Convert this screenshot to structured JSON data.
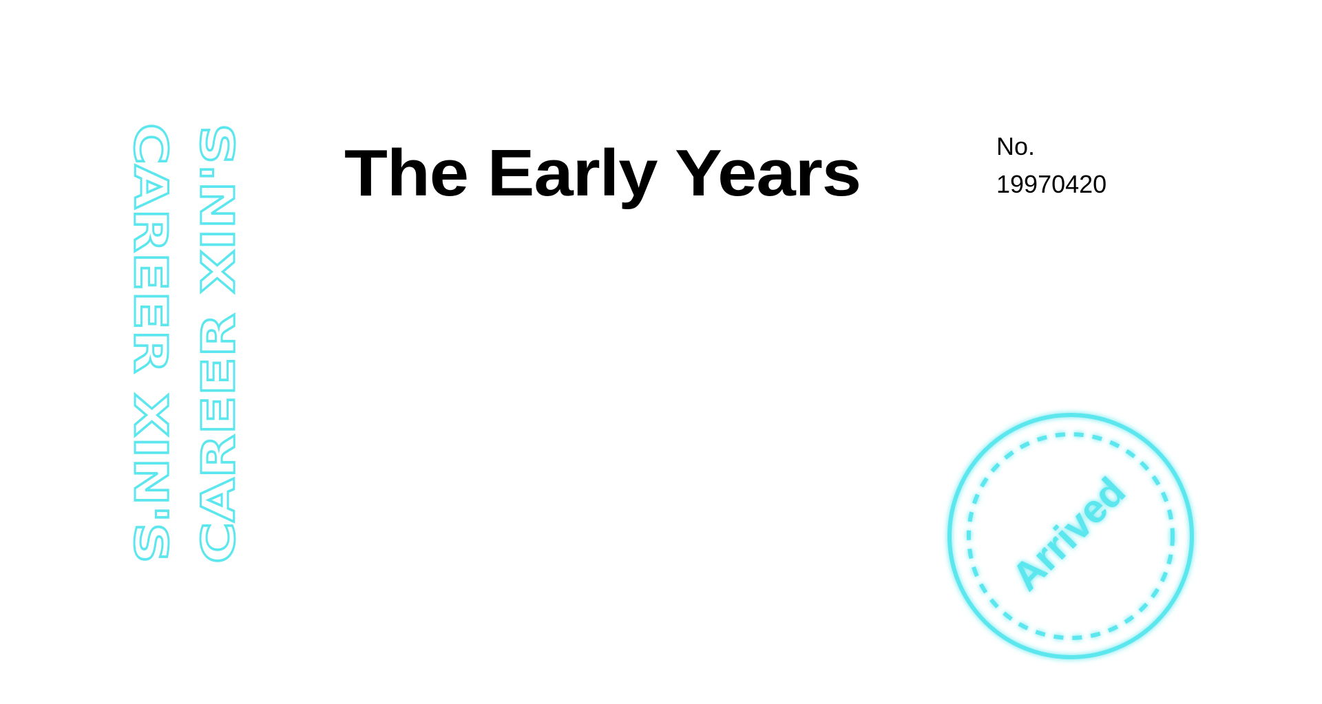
{
  "side_text": [
    "CAREER XIN'S",
    "CAREER XIN'S"
  ],
  "title": "The Early Years",
  "number_label": "No.",
  "number": "19970420",
  "stamp": "Arrived"
}
